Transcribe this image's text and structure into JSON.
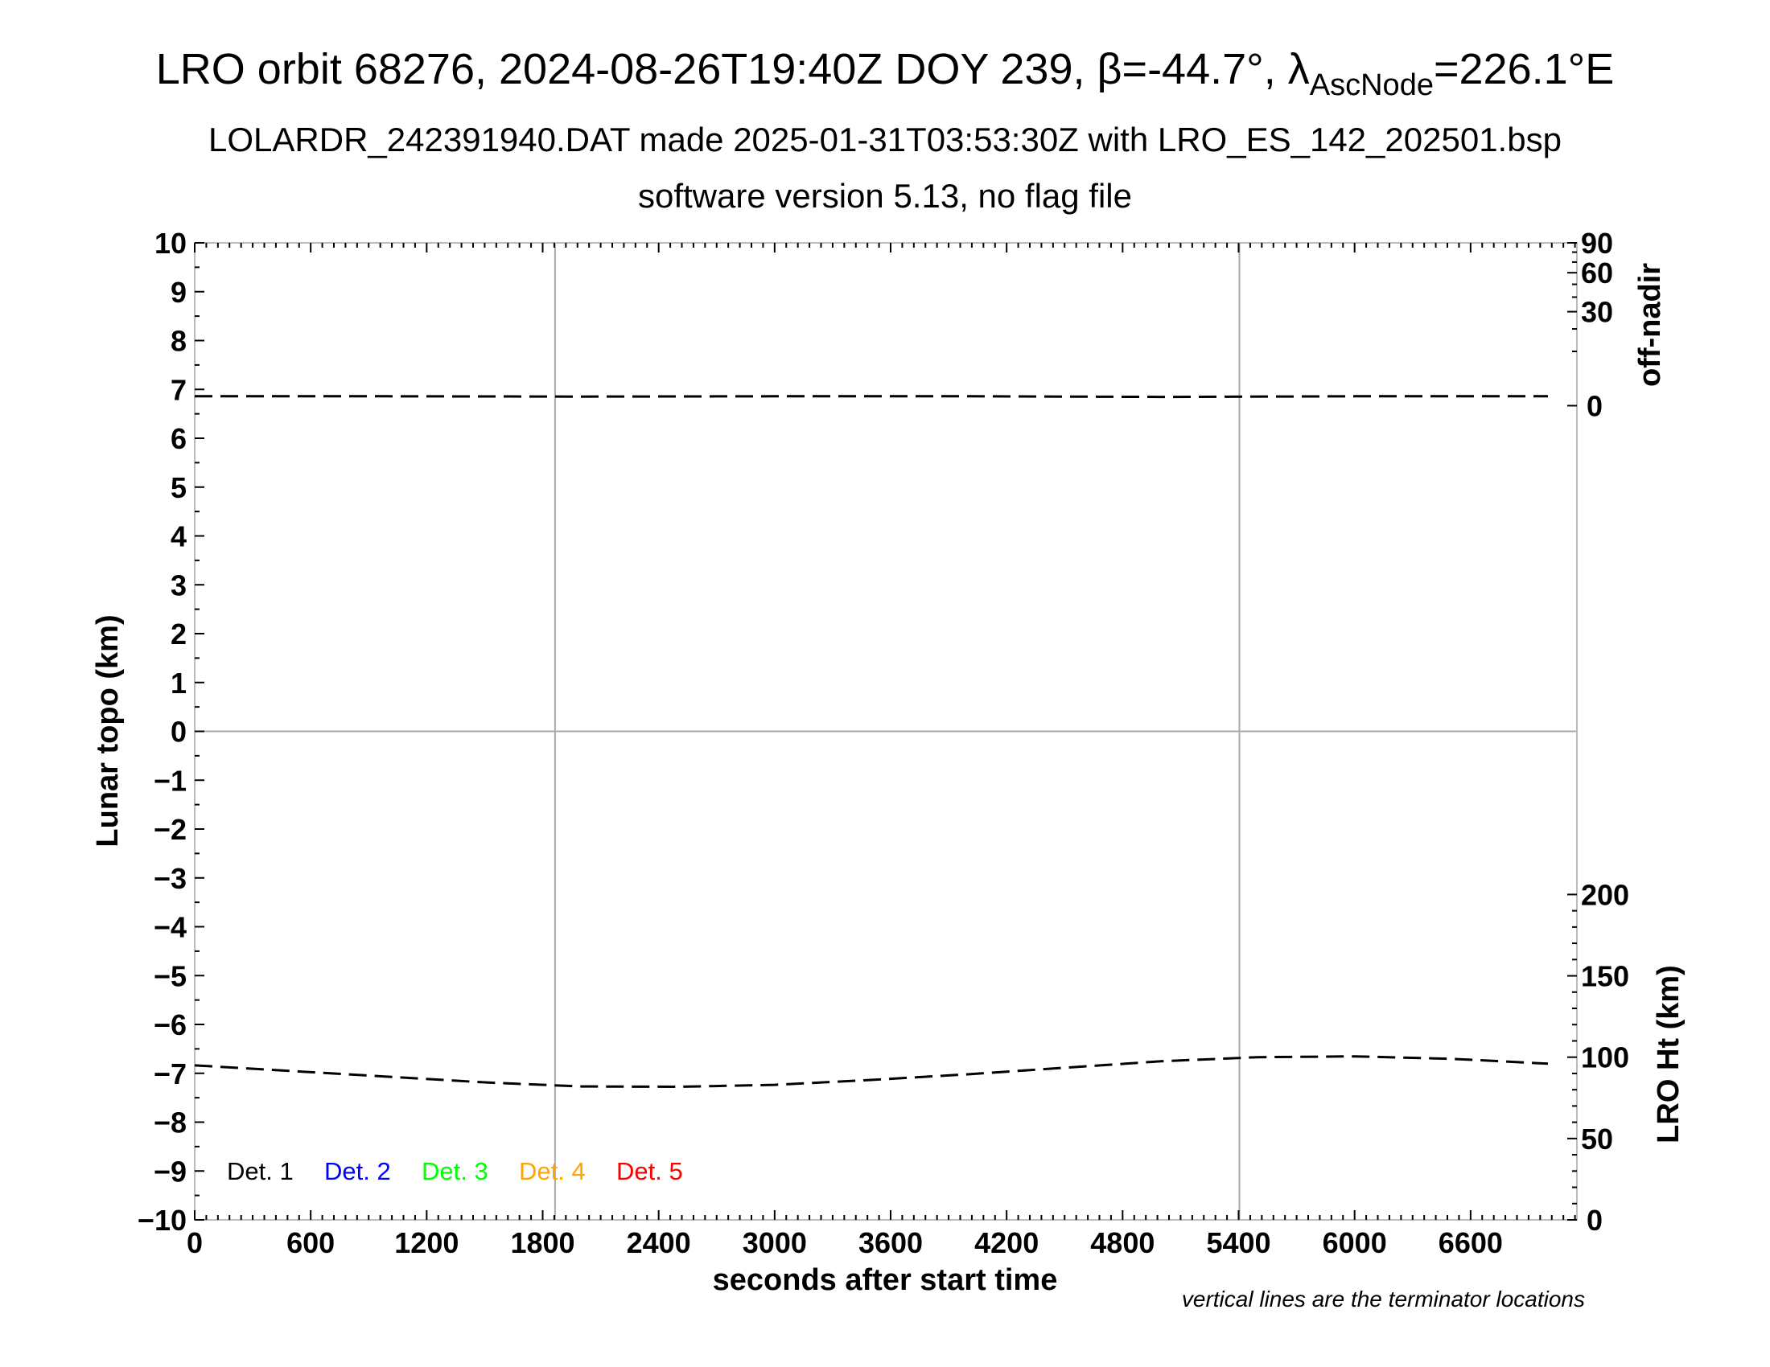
{
  "chart_data": {
    "type": "line",
    "title_main": "LRO orbit 68276, 2024-08-26T19:40Z DOY 239, β=-44.7°, λ",
    "title_sub": "AscNode",
    "title_tail": "=226.1°E",
    "subtitle": "LOLARDR_242391940.DAT made 2025-01-31T03:53:30Z with LRO_ES_142_202501.bsp",
    "subtitle2": "software version 5.13, no flag file",
    "xlabel": "seconds after start time",
    "ylabel": "Lunar topo (km)",
    "y2label_top": "off-nadir",
    "y2label_bottom": "LRO Ht (km)",
    "note": "vertical lines are the terminator locations",
    "xlim": [
      0,
      7150
    ],
    "ylim": [
      -10,
      10
    ],
    "x_ticks": [
      "0",
      "600",
      "1200",
      "1800",
      "2400",
      "3000",
      "3600",
      "4200",
      "4800",
      "5400",
      "6000",
      "6600"
    ],
    "y_ticks": [
      "10",
      "9",
      "8",
      "7",
      "6",
      "5",
      "4",
      "3",
      "2",
      "1",
      "0",
      "−1",
      "−2",
      "−3",
      "−4",
      "−5",
      "−6",
      "−7",
      "−8",
      "−9",
      "−10"
    ],
    "offnadir_ticks": [
      "0",
      "30",
      "60",
      "90"
    ],
    "height_ticks": [
      "0",
      "50",
      "100",
      "150",
      "200"
    ],
    "terminators": [
      1864,
      5404
    ],
    "legend": [
      {
        "label": "Det. 1",
        "color": "#000000"
      },
      {
        "label": "Det. 2",
        "color": "#0000ff"
      },
      {
        "label": "Det. 3",
        "color": "#00ff00"
      },
      {
        "label": "Det. 4",
        "color": "#ffa500"
      },
      {
        "label": "Det. 5",
        "color": "#ff0000"
      }
    ],
    "series": [
      {
        "name": "off-nadir (deg)",
        "x": [
          0,
          1000,
          2000,
          3000,
          4000,
          5000,
          6000,
          7000
        ],
        "values": [
          0.3,
          0.3,
          0.28,
          0.3,
          0.3,
          0.26,
          0.3,
          0.3
        ]
      },
      {
        "name": "LRO Ht (km)",
        "x": [
          0,
          500,
          1000,
          1500,
          2000,
          2500,
          3000,
          3500,
          4000,
          4500,
          5000,
          5500,
          6000,
          6500,
          7000
        ],
        "values": [
          95,
          91.5,
          88,
          84.5,
          82,
          81.8,
          83,
          86,
          89.5,
          93.5,
          97.5,
          100,
          100.5,
          99,
          96
        ]
      }
    ]
  }
}
